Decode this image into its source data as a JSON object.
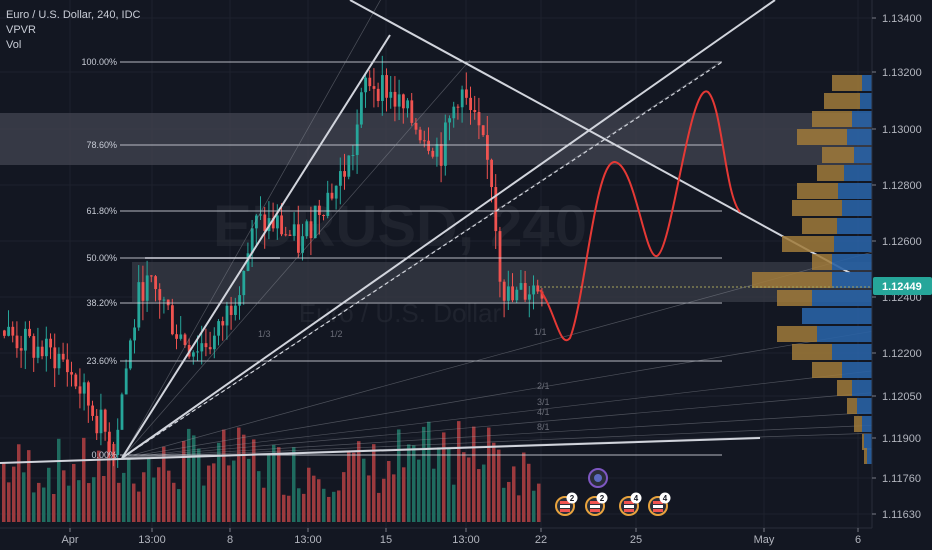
{
  "legend": {
    "symbol": "Euro / U.S. Dollar, 240, IDC",
    "indicator_vpvr": "VPVR",
    "indicator_vol": "Vol"
  },
  "watermark": {
    "symbol": "EURUSD, 240",
    "name": "Euro / U.S. Dollar"
  },
  "price_axis": {
    "ticks": [
      "1.13400",
      "1.13200",
      "1.13000",
      "1.12800",
      "1.12600",
      "1.12400",
      "1.12200",
      "1.12050",
      "1.11900",
      "1.11760",
      "1.11630"
    ],
    "current_price": "1.12449",
    "current_price_color": "#26a69a"
  },
  "time_axis": {
    "ticks": [
      "Apr",
      "13:00",
      "8",
      "13:00",
      "15",
      "13:00",
      "22",
      "25",
      "May",
      "6"
    ]
  },
  "fibonacci": {
    "levels": [
      "100.00%",
      "78.60%",
      "61.80%",
      "50.00%",
      "38.20%",
      "23.60%",
      "0.00%"
    ]
  },
  "gann_fan_labels": [
    "1/3",
    "1/2",
    "1/1",
    "2/1",
    "3/1",
    "4/1",
    "8/1"
  ],
  "events": {
    "badges": [
      "2",
      "2",
      "4",
      "4"
    ]
  },
  "colors": {
    "background": "#131722",
    "bull_candle": "#26a69a",
    "bear_candle": "#ef5350",
    "volume_up": "#1f6b5f",
    "volume_down": "#9b3a3e",
    "vpvr_up": "#2962a4",
    "vpvr_down": "#a07a3a",
    "zone": "#3a3e4b",
    "projection": "#e53935",
    "trendline": "#d1d4dc"
  }
}
